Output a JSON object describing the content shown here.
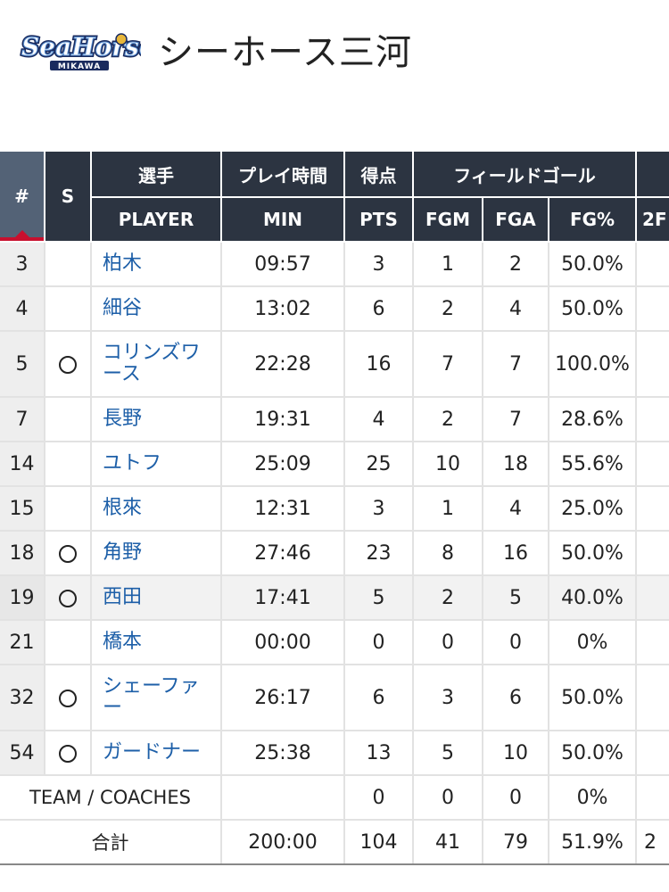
{
  "header": {
    "logo_text": "SeaHorses",
    "logo_subtext": "MIKAWA",
    "team_name": "シーホース三河"
  },
  "table": {
    "headers_ja": {
      "number": "#",
      "starter": "S",
      "player": "選手",
      "min": "プレイ時間",
      "pts": "得点",
      "fg_group": "フィールドゴール"
    },
    "headers_en": {
      "player": "PLAYER",
      "min": "MIN",
      "pts": "PTS",
      "fgm": "FGM",
      "fga": "FGA",
      "fgp": "FG%",
      "twop": "2F"
    },
    "rows": [
      {
        "no": "3",
        "starter": false,
        "player": "柏木",
        "min": "09:57",
        "pts": "3",
        "fgm": "1",
        "fga": "2",
        "fgp": "50.0%"
      },
      {
        "no": "4",
        "starter": false,
        "player": "細谷",
        "min": "13:02",
        "pts": "6",
        "fgm": "2",
        "fga": "4",
        "fgp": "50.0%"
      },
      {
        "no": "5",
        "starter": true,
        "player": "コリンズワース",
        "min": "22:28",
        "pts": "16",
        "fgm": "7",
        "fga": "7",
        "fgp": "100.0%"
      },
      {
        "no": "7",
        "starter": false,
        "player": "長野",
        "min": "19:31",
        "pts": "4",
        "fgm": "2",
        "fga": "7",
        "fgp": "28.6%"
      },
      {
        "no": "14",
        "starter": false,
        "player": "ユトフ",
        "min": "25:09",
        "pts": "25",
        "fgm": "10",
        "fga": "18",
        "fgp": "55.6%"
      },
      {
        "no": "15",
        "starter": false,
        "player": "根來",
        "min": "12:31",
        "pts": "3",
        "fgm": "1",
        "fga": "4",
        "fgp": "25.0%"
      },
      {
        "no": "18",
        "starter": true,
        "player": "角野",
        "min": "27:46",
        "pts": "23",
        "fgm": "8",
        "fga": "16",
        "fgp": "50.0%"
      },
      {
        "no": "19",
        "starter": true,
        "player": "西田",
        "min": "17:41",
        "pts": "5",
        "fgm": "2",
        "fga": "5",
        "fgp": "40.0%"
      },
      {
        "no": "21",
        "starter": false,
        "player": "橋本",
        "min": "00:00",
        "pts": "0",
        "fgm": "0",
        "fga": "0",
        "fgp": "0%"
      },
      {
        "no": "32",
        "starter": true,
        "player": "シェーファー",
        "min": "26:17",
        "pts": "6",
        "fgm": "3",
        "fga": "6",
        "fgp": "50.0%"
      },
      {
        "no": "54",
        "starter": true,
        "player": "ガードナー",
        "min": "25:38",
        "pts": "13",
        "fgm": "5",
        "fga": "10",
        "fgp": "50.0%"
      }
    ],
    "team_row": {
      "label": "TEAM / COACHES",
      "min": "",
      "pts": "0",
      "fgm": "0",
      "fga": "0",
      "fgp": "0%"
    },
    "total_row": {
      "label": "合計",
      "min": "200:00",
      "pts": "104",
      "fgm": "41",
      "fga": "79",
      "fgp": "51.9%",
      "twop": "2"
    }
  }
}
